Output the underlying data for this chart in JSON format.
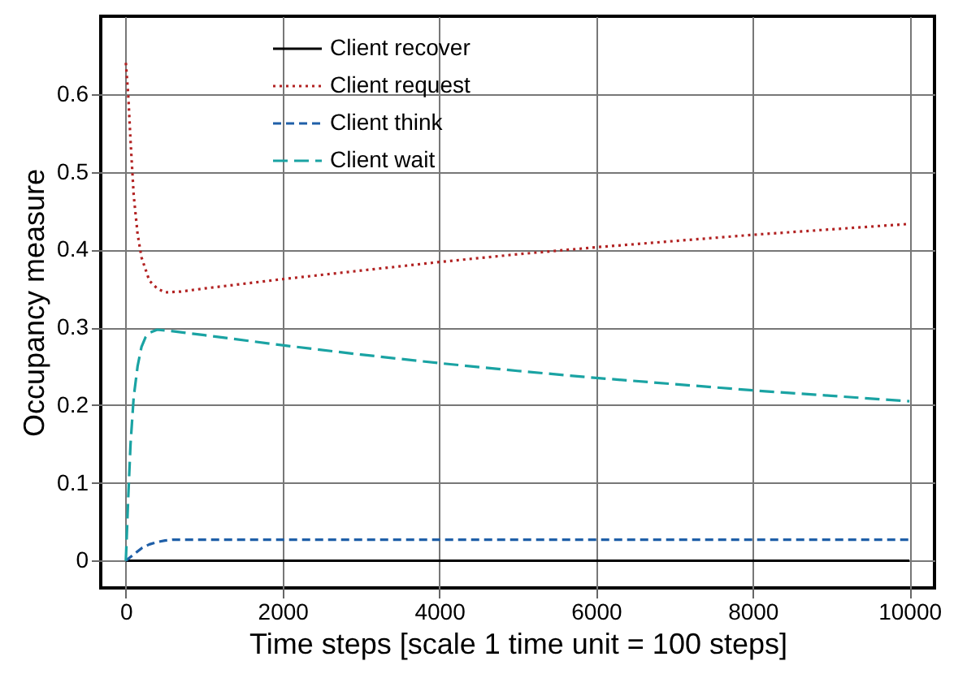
{
  "chart_data": {
    "type": "line",
    "xlabel": "Time steps [scale 1 time unit = 100 steps]",
    "ylabel": "Occupancy measure",
    "xlim": [
      -320,
      10320
    ],
    "ylim": [
      -0.035,
      0.7
    ],
    "xticks": [
      0,
      2000,
      4000,
      6000,
      8000,
      10000
    ],
    "yticks": [
      0,
      0.1,
      0.2,
      0.3,
      0.4,
      0.5,
      0.6
    ],
    "grid": true,
    "legend": "top",
    "marker": "none",
    "series": [
      {
        "name": "Client recover",
        "color": "#000000",
        "line_style": "solid",
        "x": [
          0,
          10000
        ],
        "values": [
          0,
          0
        ]
      },
      {
        "name": "Client request",
        "color": "#b22222",
        "line_style": "dotted",
        "x": [
          0,
          30,
          60,
          100,
          150,
          200,
          300,
          400,
          500,
          700,
          1000,
          1500,
          2000,
          3000,
          4000,
          5000,
          6000,
          7000,
          8000,
          9000,
          10000
        ],
        "values": [
          0.64,
          0.6,
          0.54,
          0.47,
          0.42,
          0.39,
          0.36,
          0.35,
          0.345,
          0.346,
          0.35,
          0.356,
          0.362,
          0.373,
          0.384,
          0.394,
          0.403,
          0.411,
          0.419,
          0.426,
          0.433
        ]
      },
      {
        "name": "Client think",
        "color": "#1f5fa8",
        "line_style": "dashed",
        "x": [
          0,
          100,
          200,
          300,
          400,
          500,
          600,
          800,
          1000,
          10000
        ],
        "values": [
          0,
          0.008,
          0.016,
          0.021,
          0.024,
          0.026,
          0.027,
          0.027,
          0.027,
          0.027
        ]
      },
      {
        "name": "Client wait",
        "color": "#1aa3a3",
        "line_style": "dashed",
        "x": [
          0,
          30,
          60,
          100,
          150,
          200,
          250,
          300,
          400,
          600,
          1000,
          2000,
          3000,
          4000,
          5000,
          6000,
          7000,
          8000,
          9000,
          10000
        ],
        "values": [
          0,
          0.08,
          0.15,
          0.21,
          0.25,
          0.275,
          0.287,
          0.293,
          0.297,
          0.295,
          0.29,
          0.277,
          0.265,
          0.254,
          0.244,
          0.235,
          0.227,
          0.219,
          0.212,
          0.205
        ]
      }
    ]
  }
}
